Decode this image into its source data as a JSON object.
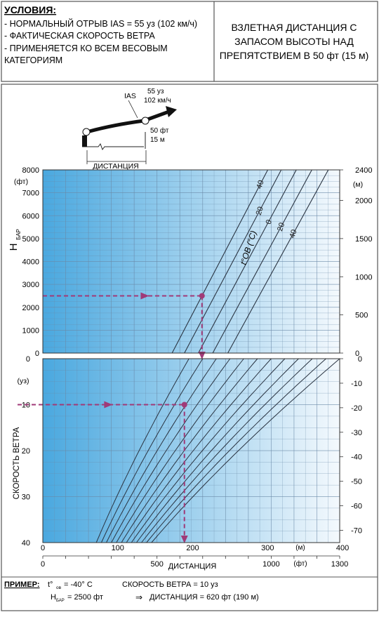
{
  "conditions": {
    "heading": "УСЛОВИЯ:",
    "lines": [
      "- НОРМАЛЬНЫЙ ОТРЫВ IAS = 55 уз (102 км/ч)",
      "- ФАКТИЧЕСКАЯ СКОРОСТЬ ВЕТРА",
      "- ПРИМЕНЯЕТСЯ КО ВСЕМ ВЕСОВЫМ",
      "КАТЕГОРИЯМ"
    ]
  },
  "title_lines": [
    "ВЗЛЕТНАЯ ДИСТАНЦИЯ С",
    "ЗАПАСОМ ВЫСОТЫ НАД",
    "ПРЕПЯТСТВИЕМ В 50 фт (15 м)"
  ],
  "sketch": {
    "ias_label": "IAS",
    "speed_kt": "55 уз",
    "speed_kmh": "102 км/ч",
    "height_ft": "50 фт",
    "height_m": "15 м",
    "distance_label": "ДИСТАНЦИЯ"
  },
  "example": {
    "label": "ПРИМЕР:",
    "temp_sym": "t°",
    "temp_sub": "ов",
    "temp_value": " = -40° C",
    "wind": "СКОРОСТЬ ВЕТРА = 10 уз",
    "h_sym": "H",
    "h_sub": "БАР",
    "h_value": " = 2500 фт",
    "arrow": "⇒",
    "result": "ДИСТАНЦИЯ = 620 фт (190 м)"
  },
  "colors": {
    "grid_fill_dark": "#4aa8df",
    "grid_fill_light": "#f4f9fd",
    "grid_line": "#6a8aa8",
    "curve": "#2a3442",
    "example_path": "#a03a78",
    "frame": "#555555"
  },
  "chart_data": [
    {
      "type": "line",
      "name": "altitude-panel",
      "ylabel": "H",
      "ylabel_sub": "БАР",
      "y_unit": "(фт)",
      "y2_unit": "(м)",
      "ylim": [
        0,
        8000
      ],
      "yticks": [
        "0",
        "1000",
        "2000",
        "3000",
        "4000",
        "5000",
        "6000",
        "7000",
        "8000"
      ],
      "y2lim": [
        0,
        2400
      ],
      "y2ticks": [
        "0",
        "500",
        "1000",
        "1500",
        "2000",
        "2400"
      ],
      "grid": true,
      "temperature_label": "t°ОВ (°C)",
      "series": [
        {
          "name": "-40",
          "x": [
            566,
            985
          ],
          "y": [
            0,
            8000
          ]
        },
        {
          "name": "-20",
          "x": [
            620,
            1044
          ],
          "y": [
            0,
            8000
          ]
        },
        {
          "name": "0",
          "x": [
            681,
            1110
          ],
          "y": [
            0,
            8000
          ]
        },
        {
          "name": "20",
          "x": [
            744,
            1178
          ],
          "y": [
            0,
            8000
          ]
        },
        {
          "name": "40",
          "x": [
            810,
            1250
          ],
          "y": [
            0,
            8000
          ]
        }
      ],
      "curve_labels": [
        "40",
        "20",
        "0",
        "20",
        "40"
      ]
    },
    {
      "type": "line",
      "name": "wind-panel",
      "ylabel": "СКОРОСТЬ ВЕТРА",
      "y_unit": "(уз)",
      "ylim": [
        0,
        40
      ],
      "yticks": [
        "0",
        "10",
        "20",
        "30",
        "40"
      ],
      "y2lim": [
        0,
        75
      ],
      "y2ticks": [
        "0",
        "-10",
        "-20",
        "-30",
        "-40",
        "-50",
        "-60",
        "-70"
      ],
      "xlim_ft": [
        0,
        1300
      ],
      "xticks_ft": [
        "0",
        "500",
        "1000",
        "1300"
      ],
      "x_unit_ft": "(фт)",
      "xlim_m": [
        0,
        400
      ],
      "xticks_m": [
        "0",
        "100",
        "200",
        "300",
        "400"
      ],
      "x_unit_m": "(м)",
      "xlabel": "ДИСТАНЦИЯ",
      "grid": true,
      "guideline_d0_ft": [
        640,
        700,
        760,
        820,
        880,
        940,
        1000,
        1060,
        1120,
        1180,
        1240,
        1300
      ]
    }
  ]
}
